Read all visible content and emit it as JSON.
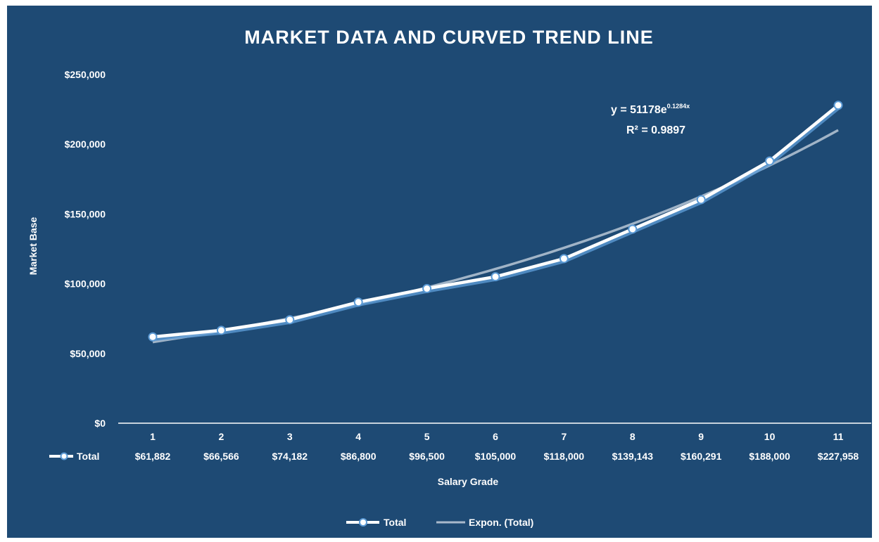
{
  "chart_data": {
    "type": "line",
    "title": "MARKET DATA AND CURVED TREND LINE",
    "xlabel": "Salary Grade",
    "ylabel": "Market Base",
    "categories": [
      "1",
      "2",
      "3",
      "4",
      "5",
      "6",
      "7",
      "8",
      "9",
      "10",
      "11"
    ],
    "ylim": [
      0,
      250000
    ],
    "yticks": [
      0,
      50000,
      100000,
      150000,
      200000,
      250000
    ],
    "ytick_labels": [
      "$0",
      "$50,000",
      "$100,000",
      "$150,000",
      "$200,000",
      "$250,000"
    ],
    "series": [
      {
        "name": "Total",
        "values": [
          61882,
          66566,
          74182,
          86800,
          96500,
          105000,
          118000,
          139143,
          160291,
          188000,
          227958
        ],
        "value_labels": [
          "$61,882",
          "$66,566",
          "$74,182",
          "$86,800",
          "$96,500",
          "$105,000",
          "$118,000",
          "$139,143",
          "$160,291",
          "$188,000",
          "$227,958"
        ],
        "color": "#ffffff",
        "marker": "circle"
      }
    ],
    "trendline": {
      "name": "Expon. (Total)",
      "type": "exponential",
      "a": 51178,
      "b": 0.1284,
      "equation": "y = 51178e",
      "equation_exponent": "0.1284x",
      "r2_label": "R² = 0.9897",
      "color": "#a9b9cb"
    },
    "data_table_series_label": "Total",
    "legend": [
      "Total",
      "Expon. (Total)"
    ],
    "legend_position": "bottom",
    "grid": false,
    "drop_lines": true,
    "background": "#1e4a74"
  }
}
